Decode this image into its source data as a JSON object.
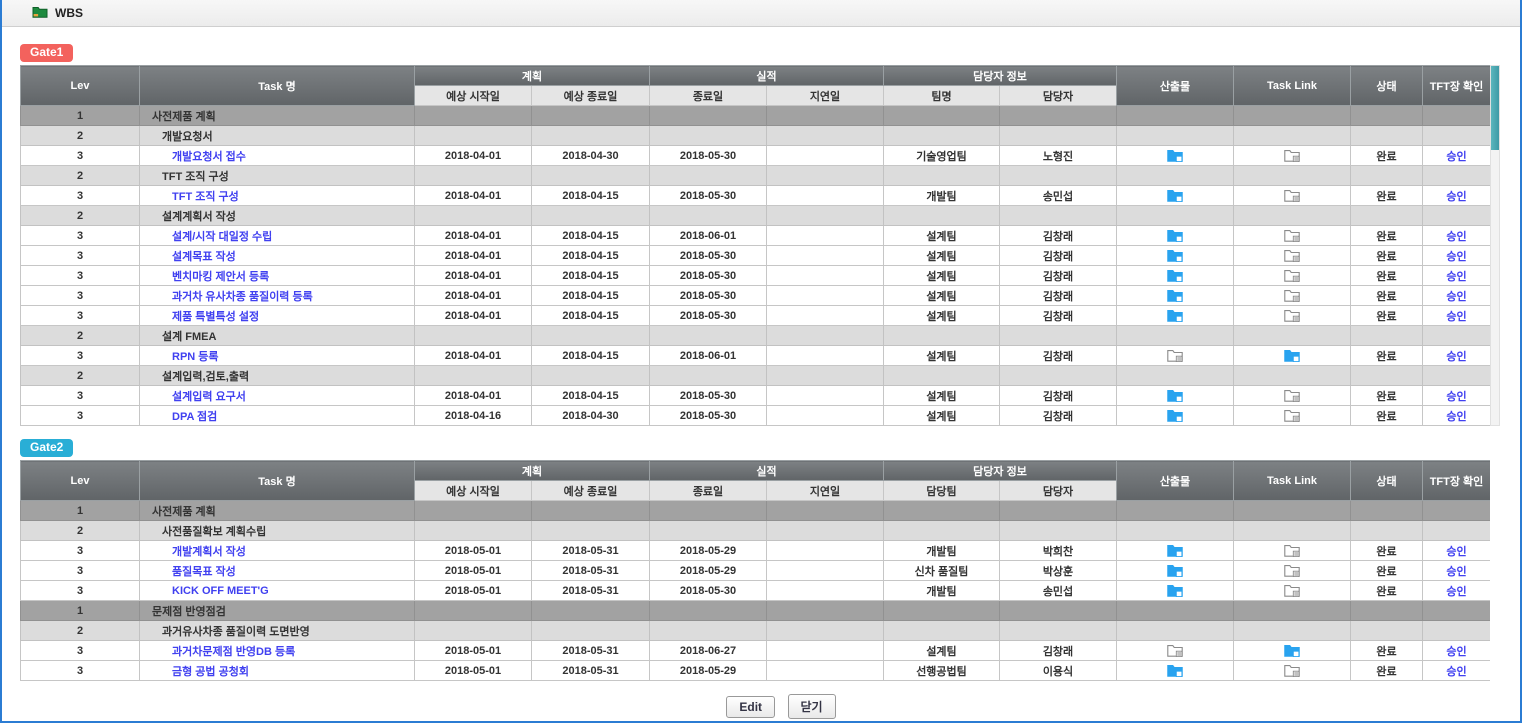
{
  "window": {
    "title": "WBS"
  },
  "colors": {
    "gate1_badge": "#f3625d",
    "gate2_badge": "#29aed6",
    "link": "#4040f0",
    "deliverable_folder_blue": "#29a3ef",
    "folder_outline_gray": "#8a8a8a",
    "scrollbar_thumb_teal": "#4fadb6",
    "level1_row": "#a2a2a2",
    "level2_row": "#dcdcdc"
  },
  "table_headers": {
    "lev": "Lev",
    "task": "Task 명",
    "plan_group": "계획",
    "actual_group": "실적",
    "owner_group": "담당자 정보",
    "plan_start": "예상 시작일",
    "plan_end": "예상 종료일",
    "actual_end": "종료일",
    "delay": "지연일",
    "owner": "담당자",
    "deliverable": "산출물",
    "task_link": "Task Link",
    "status": "상태",
    "tft_confirm": "TFT장 확인"
  },
  "gate1": {
    "label": "Gate1",
    "team_header": "팀명",
    "rows": [
      {
        "lev": 1,
        "task": "사전제품 계획",
        "plan_start": "",
        "plan_end": "",
        "actual_end": "",
        "delay": "",
        "team": "",
        "owner": "",
        "deliverable": "",
        "task_link": "",
        "status": "",
        "confirm": ""
      },
      {
        "lev": 2,
        "task": "개발요청서",
        "plan_start": "",
        "plan_end": "",
        "actual_end": "",
        "delay": "",
        "team": "",
        "owner": "",
        "deliverable": "",
        "task_link": "",
        "status": "",
        "confirm": ""
      },
      {
        "lev": 3,
        "task": "개발요청서 접수",
        "plan_start": "2018-04-01",
        "plan_end": "2018-04-30",
        "actual_end": "2018-05-30",
        "delay": "",
        "team": "기술영업팀",
        "owner": "노형진",
        "deliverable": "blue",
        "task_link": "gray",
        "status": "완료",
        "confirm": "승인"
      },
      {
        "lev": 2,
        "task": "TFT 조직 구성",
        "plan_start": "",
        "plan_end": "",
        "actual_end": "",
        "delay": "",
        "team": "",
        "owner": "",
        "deliverable": "",
        "task_link": "",
        "status": "",
        "confirm": ""
      },
      {
        "lev": 3,
        "task": "TFT 조직 구성",
        "plan_start": "2018-04-01",
        "plan_end": "2018-04-15",
        "actual_end": "2018-05-30",
        "delay": "",
        "team": "개발팀",
        "owner": "송민섭",
        "deliverable": "blue",
        "task_link": "gray",
        "status": "완료",
        "confirm": "승인"
      },
      {
        "lev": 2,
        "task": "설계계획서 작성",
        "plan_start": "",
        "plan_end": "",
        "actual_end": "",
        "delay": "",
        "team": "",
        "owner": "",
        "deliverable": "",
        "task_link": "",
        "status": "",
        "confirm": ""
      },
      {
        "lev": 3,
        "task": "설계/시작 대일정 수립",
        "plan_start": "2018-04-01",
        "plan_end": "2018-04-15",
        "actual_end": "2018-06-01",
        "delay": "",
        "team": "설계팀",
        "owner": "김창래",
        "deliverable": "blue",
        "task_link": "gray",
        "status": "완료",
        "confirm": "승인"
      },
      {
        "lev": 3,
        "task": "설계목표 작성",
        "plan_start": "2018-04-01",
        "plan_end": "2018-04-15",
        "actual_end": "2018-05-30",
        "delay": "",
        "team": "설계팀",
        "owner": "김창래",
        "deliverable": "blue",
        "task_link": "gray",
        "status": "완료",
        "confirm": "승인"
      },
      {
        "lev": 3,
        "task": "벤치마킹 제안서 등록",
        "plan_start": "2018-04-01",
        "plan_end": "2018-04-15",
        "actual_end": "2018-05-30",
        "delay": "",
        "team": "설계팀",
        "owner": "김창래",
        "deliverable": "blue",
        "task_link": "gray",
        "status": "완료",
        "confirm": "승인"
      },
      {
        "lev": 3,
        "task": "과거차 유사차종 품질이력 등록",
        "plan_start": "2018-04-01",
        "plan_end": "2018-04-15",
        "actual_end": "2018-05-30",
        "delay": "",
        "team": "설계팀",
        "owner": "김창래",
        "deliverable": "blue",
        "task_link": "gray",
        "status": "완료",
        "confirm": "승인"
      },
      {
        "lev": 3,
        "task": "제품 특별특성 설정",
        "plan_start": "2018-04-01",
        "plan_end": "2018-04-15",
        "actual_end": "2018-05-30",
        "delay": "",
        "team": "설계팀",
        "owner": "김창래",
        "deliverable": "blue",
        "task_link": "gray",
        "status": "완료",
        "confirm": "승인"
      },
      {
        "lev": 2,
        "task": "설계 FMEA",
        "plan_start": "",
        "plan_end": "",
        "actual_end": "",
        "delay": "",
        "team": "",
        "owner": "",
        "deliverable": "",
        "task_link": "",
        "status": "",
        "confirm": ""
      },
      {
        "lev": 3,
        "task": "RPN 등록",
        "plan_start": "2018-04-01",
        "plan_end": "2018-04-15",
        "actual_end": "2018-06-01",
        "delay": "",
        "team": "설계팀",
        "owner": "김창래",
        "deliverable": "gray",
        "task_link": "blue",
        "status": "완료",
        "confirm": "승인"
      },
      {
        "lev": 2,
        "task": "설계입력,검토,출력",
        "plan_start": "",
        "plan_end": "",
        "actual_end": "",
        "delay": "",
        "team": "",
        "owner": "",
        "deliverable": "",
        "task_link": "",
        "status": "",
        "confirm": ""
      },
      {
        "lev": 3,
        "task": "설계입력 요구서",
        "plan_start": "2018-04-01",
        "plan_end": "2018-04-15",
        "actual_end": "2018-05-30",
        "delay": "",
        "team": "설계팀",
        "owner": "김창래",
        "deliverable": "blue",
        "task_link": "gray",
        "status": "완료",
        "confirm": "승인"
      },
      {
        "lev": 3,
        "task": "DPA 점검",
        "plan_start": "2018-04-16",
        "plan_end": "2018-04-30",
        "actual_end": "2018-05-30",
        "delay": "",
        "team": "설계팀",
        "owner": "김창래",
        "deliverable": "blue",
        "task_link": "gray",
        "status": "완료",
        "confirm": "승인"
      }
    ]
  },
  "gate2": {
    "label": "Gate2",
    "team_header": "담당팀",
    "rows": [
      {
        "lev": 1,
        "task": "사전제품 계획",
        "plan_start": "",
        "plan_end": "",
        "actual_end": "",
        "delay": "",
        "team": "",
        "owner": "",
        "deliverable": "",
        "task_link": "",
        "status": "",
        "confirm": ""
      },
      {
        "lev": 2,
        "task": "사전품질확보 계획수립",
        "plan_start": "",
        "plan_end": "",
        "actual_end": "",
        "delay": "",
        "team": "",
        "owner": "",
        "deliverable": "",
        "task_link": "",
        "status": "",
        "confirm": ""
      },
      {
        "lev": 3,
        "task": "개발계획서 작성",
        "plan_start": "2018-05-01",
        "plan_end": "2018-05-31",
        "actual_end": "2018-05-29",
        "delay": "",
        "team": "개발팀",
        "owner": "박희찬",
        "deliverable": "blue",
        "task_link": "gray",
        "status": "완료",
        "confirm": "승인"
      },
      {
        "lev": 3,
        "task": "품질목표 작성",
        "plan_start": "2018-05-01",
        "plan_end": "2018-05-31",
        "actual_end": "2018-05-29",
        "delay": "",
        "team": "신차 품질팀",
        "owner": "박상훈",
        "deliverable": "blue",
        "task_link": "gray",
        "status": "완료",
        "confirm": "승인"
      },
      {
        "lev": 3,
        "task": "KICK OFF MEET'G",
        "plan_start": "2018-05-01",
        "plan_end": "2018-05-31",
        "actual_end": "2018-05-30",
        "delay": "",
        "team": "개발팀",
        "owner": "송민섭",
        "deliverable": "blue",
        "task_link": "gray",
        "status": "완료",
        "confirm": "승인"
      },
      {
        "lev": 1,
        "task": "문제점 반영점검",
        "plan_start": "",
        "plan_end": "",
        "actual_end": "",
        "delay": "",
        "team": "",
        "owner": "",
        "deliverable": "",
        "task_link": "",
        "status": "",
        "confirm": ""
      },
      {
        "lev": 2,
        "task": "과거유사차종 품질이력 도면반영",
        "plan_start": "",
        "plan_end": "",
        "actual_end": "",
        "delay": "",
        "team": "",
        "owner": "",
        "deliverable": "",
        "task_link": "",
        "status": "",
        "confirm": ""
      },
      {
        "lev": 3,
        "task": "과거차문제점 반영DB 등록",
        "plan_start": "2018-05-01",
        "plan_end": "2018-05-31",
        "actual_end": "2018-06-27",
        "delay": "",
        "team": "설계팀",
        "owner": "김창래",
        "deliverable": "gray",
        "task_link": "blue",
        "status": "완료",
        "confirm": "승인"
      },
      {
        "lev": 3,
        "task": "금형 공법 공청회",
        "plan_start": "2018-05-01",
        "plan_end": "2018-05-31",
        "actual_end": "2018-05-29",
        "delay": "",
        "team": "선행공법팀",
        "owner": "이용식",
        "deliverable": "blue",
        "task_link": "gray",
        "status": "완료",
        "confirm": "승인"
      }
    ]
  },
  "footer": {
    "edit_label": "Edit",
    "close_label": "닫기"
  }
}
